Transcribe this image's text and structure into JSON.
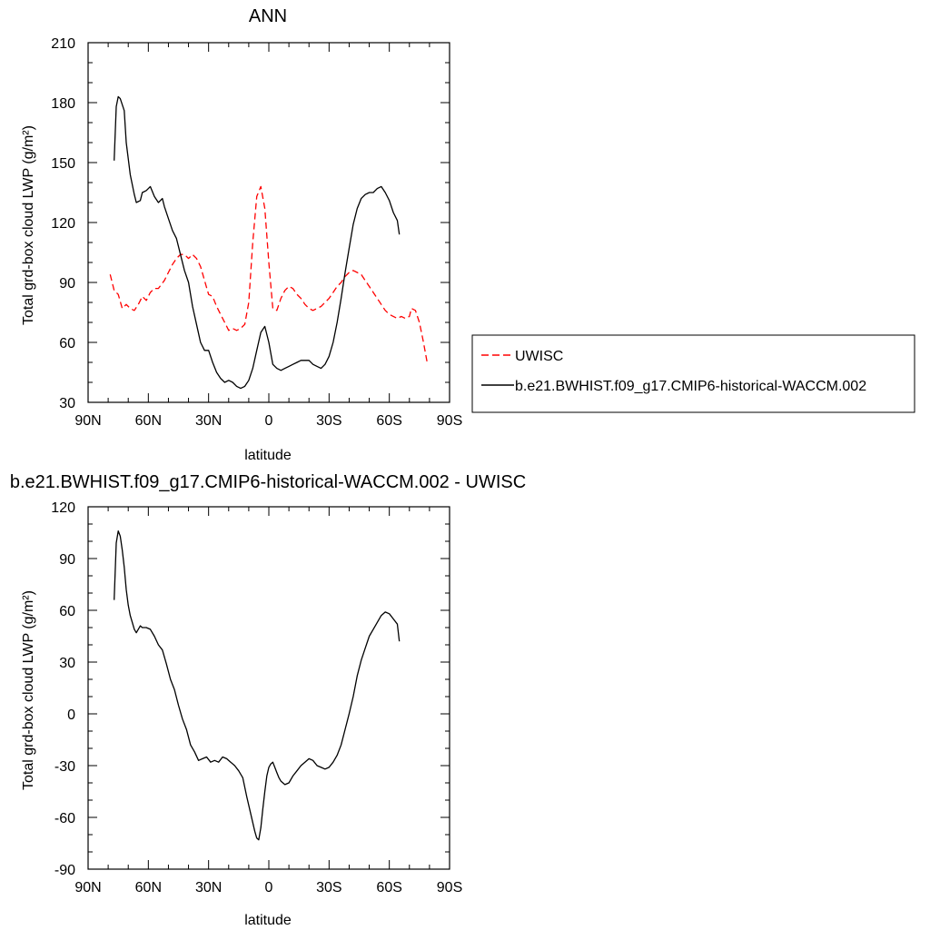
{
  "colors": {
    "uwisc": "#ff0000",
    "model": "#000000"
  },
  "chart_data": [
    {
      "type": "line",
      "title": "ANN",
      "xlabel": "latitude",
      "ylabel": "Total grd-box cloud LWP (g/m²)",
      "xticks": [
        {
          "value": 90,
          "label": "90N"
        },
        {
          "value": 60,
          "label": "60N"
        },
        {
          "value": 30,
          "label": "30N"
        },
        {
          "value": 0,
          "label": "0"
        },
        {
          "value": -30,
          "label": "30S"
        },
        {
          "value": -60,
          "label": "60S"
        },
        {
          "value": -90,
          "label": "90S"
        }
      ],
      "yticks": [
        30,
        60,
        90,
        120,
        150,
        180,
        210
      ],
      "xlim": [
        90,
        -90
      ],
      "ylim": [
        30,
        210
      ],
      "legend_position": "right",
      "series": [
        {
          "name": "UWISC",
          "color": "#ff0000",
          "dash": "dashed",
          "x": [
            79,
            77,
            75,
            73,
            71,
            69,
            67,
            65,
            63,
            61,
            59,
            57,
            55,
            52,
            50,
            48,
            46,
            44,
            42,
            40,
            38,
            36,
            34,
            32,
            30,
            28,
            26,
            24,
            22,
            20,
            18,
            16,
            14,
            12,
            10,
            8,
            6,
            4,
            2,
            0,
            -2,
            -4,
            -6,
            -8,
            -10,
            -12,
            -14,
            -16,
            -18,
            -20,
            -22,
            -24,
            -26,
            -28,
            -30,
            -32,
            -34,
            -36,
            -38,
            -40,
            -42,
            -44,
            -46,
            -48,
            -50,
            -52,
            -54,
            -56,
            -58,
            -60,
            -62,
            -64,
            -66,
            -68,
            -70,
            -71,
            -73,
            -75,
            -77,
            -79
          ],
          "y": [
            94,
            86,
            84,
            77,
            79,
            77,
            76,
            79,
            83,
            81,
            85,
            87,
            87,
            91,
            95,
            99,
            102,
            104,
            104,
            102,
            104,
            102,
            98,
            91,
            84,
            83,
            78,
            74,
            70,
            66,
            67,
            66,
            67,
            69,
            80,
            110,
            133,
            138,
            127,
            100,
            77,
            76,
            82,
            86,
            88,
            87,
            84,
            82,
            79,
            77,
            76,
            77,
            78,
            80,
            82,
            85,
            88,
            90,
            93,
            95,
            96,
            95,
            94,
            91,
            88,
            85,
            82,
            79,
            76,
            74,
            73,
            72,
            73,
            72,
            73,
            77,
            76,
            70,
            60,
            49
          ]
        },
        {
          "name": "b.e21.BWHIST.f09_g17.CMIP6-historical-WACCM.002",
          "color": "#000000",
          "dash": "solid",
          "x": [
            77,
            76,
            75,
            74,
            72,
            71,
            69,
            67,
            66,
            64,
            63,
            61,
            59,
            57,
            55,
            53,
            52,
            50,
            48,
            46,
            44,
            42,
            40,
            38,
            36,
            34,
            32,
            30,
            28,
            26,
            24,
            22,
            20,
            18,
            16,
            14,
            12,
            10,
            8,
            6,
            4,
            2,
            0,
            -2,
            -4,
            -6,
            -8,
            -10,
            -12,
            -14,
            -16,
            -18,
            -20,
            -22,
            -24,
            -26,
            -28,
            -30,
            -32,
            -34,
            -36,
            -38,
            -40,
            -42,
            -44,
            -46,
            -48,
            -50,
            -52,
            -54,
            -56,
            -58,
            -60,
            -62,
            -64,
            -65
          ],
          "y": [
            151,
            178,
            183,
            182,
            176,
            160,
            144,
            134,
            130,
            131,
            135,
            136,
            138,
            133,
            130,
            132,
            128,
            122,
            116,
            112,
            104,
            96,
            90,
            78,
            69,
            60,
            56,
            56,
            50,
            45,
            42,
            40,
            41,
            40,
            38,
            37,
            38,
            41,
            47,
            56,
            65,
            68,
            60,
            49,
            47,
            46,
            47,
            48,
            49,
            50,
            51,
            51,
            51,
            49,
            48,
            47,
            49,
            53,
            60,
            70,
            82,
            95,
            107,
            119,
            127,
            132,
            134,
            135,
            135,
            137,
            138,
            135,
            131,
            125,
            121,
            114
          ]
        }
      ]
    },
    {
      "type": "line",
      "title": "b.e21.BWHIST.f09_g17.CMIP6-historical-WACCM.002 - UWISC",
      "xlabel": "latitude",
      "ylabel": "Total grd-box cloud LWP (g/m²)",
      "xticks": [
        {
          "value": 90,
          "label": "90N"
        },
        {
          "value": 60,
          "label": "60N"
        },
        {
          "value": 30,
          "label": "30N"
        },
        {
          "value": 0,
          "label": "0"
        },
        {
          "value": -30,
          "label": "30S"
        },
        {
          "value": -60,
          "label": "60S"
        },
        {
          "value": -90,
          "label": "90S"
        }
      ],
      "yticks": [
        -90,
        -60,
        -30,
        0,
        30,
        60,
        90,
        120
      ],
      "xlim": [
        90,
        -90
      ],
      "ylim": [
        -90,
        120
      ],
      "series": [
        {
          "color": "#000000",
          "dash": "solid",
          "x": [
            77,
            76,
            75,
            74,
            73,
            72,
            71,
            70,
            69,
            67,
            66,
            64,
            63,
            61,
            59,
            57,
            55,
            53,
            51,
            49,
            47,
            45,
            43,
            41,
            39,
            37,
            35,
            33,
            31,
            29,
            27,
            25,
            23,
            21,
            19,
            17,
            15,
            13,
            11,
            9,
            7,
            6,
            5,
            4,
            3,
            2,
            1,
            0,
            -1,
            -2,
            -3,
            -4,
            -5,
            -6,
            -8,
            -10,
            -12,
            -14,
            -16,
            -18,
            -20,
            -22,
            -24,
            -26,
            -28,
            -30,
            -32,
            -34,
            -36,
            -38,
            -40,
            -42,
            -44,
            -46,
            -48,
            -50,
            -52,
            -54,
            -56,
            -58,
            -60,
            -62,
            -64,
            -65
          ],
          "y": [
            66,
            99,
            106,
            103,
            95,
            85,
            72,
            63,
            57,
            49,
            47,
            51,
            50,
            50,
            49,
            45,
            40,
            37,
            29,
            20,
            14,
            5,
            -3,
            -9,
            -18,
            -22,
            -27,
            -26,
            -25,
            -28,
            -27,
            -28,
            -25,
            -26,
            -28,
            -30,
            -33,
            -37,
            -48,
            -58,
            -68,
            -72,
            -73,
            -66,
            -55,
            -45,
            -36,
            -31,
            -29,
            -28,
            -31,
            -34,
            -37,
            -39,
            -41,
            -40,
            -36,
            -33,
            -30,
            -28,
            -26,
            -27,
            -30,
            -31,
            -32,
            -31,
            -28,
            -24,
            -18,
            -9,
            0,
            10,
            22,
            31,
            38,
            45,
            49,
            53,
            57,
            59,
            58,
            55,
            52,
            42
          ]
        }
      ]
    }
  ]
}
